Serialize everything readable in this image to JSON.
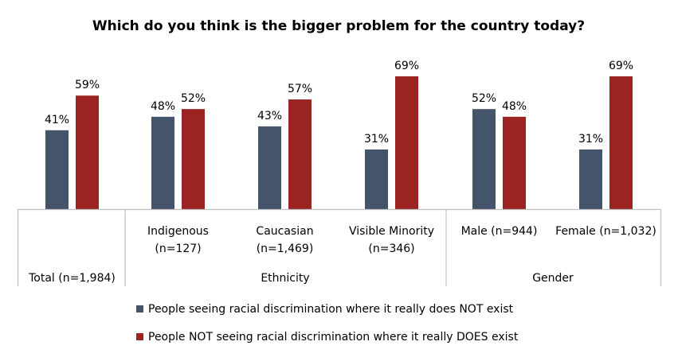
{
  "chart_data": {
    "type": "bar",
    "title": "Which do you think is the bigger problem for the country today?",
    "categories": [
      {
        "lines": [
          "Total (n=1,984)"
        ],
        "group": "Total"
      },
      {
        "lines": [
          "Indigenous",
          "(n=127)"
        ],
        "group": "Ethnicity"
      },
      {
        "lines": [
          "Caucasian",
          "(n=1,469)"
        ],
        "group": "Ethnicity"
      },
      {
        "lines": [
          "Visible Minority",
          "(n=346)"
        ],
        "group": "Ethnicity"
      },
      {
        "lines": [
          "Male (n=944)"
        ],
        "group": "Gender"
      },
      {
        "lines": [
          "Female (n=1,032)"
        ],
        "group": "Gender"
      }
    ],
    "group_labels": [
      "Ethnicity",
      "Gender"
    ],
    "series": [
      {
        "name": "People seeing racial discrimination where it really does NOT exist",
        "color": "#44546A",
        "values": [
          41,
          48,
          43,
          31,
          52,
          31
        ],
        "labels": [
          "41%",
          "48%",
          "43%",
          "31%",
          "52%",
          "31%"
        ]
      },
      {
        "name": "People NOT seeing racial discrimination where it really DOES exist",
        "color": "#9B2423",
        "values": [
          59,
          52,
          57,
          69,
          48,
          69
        ],
        "labels": [
          "59%",
          "52%",
          "57%",
          "69%",
          "48%",
          "69%"
        ]
      }
    ],
    "ylim": [
      0,
      100
    ],
    "grid": false,
    "legend_position": "bottom"
  }
}
